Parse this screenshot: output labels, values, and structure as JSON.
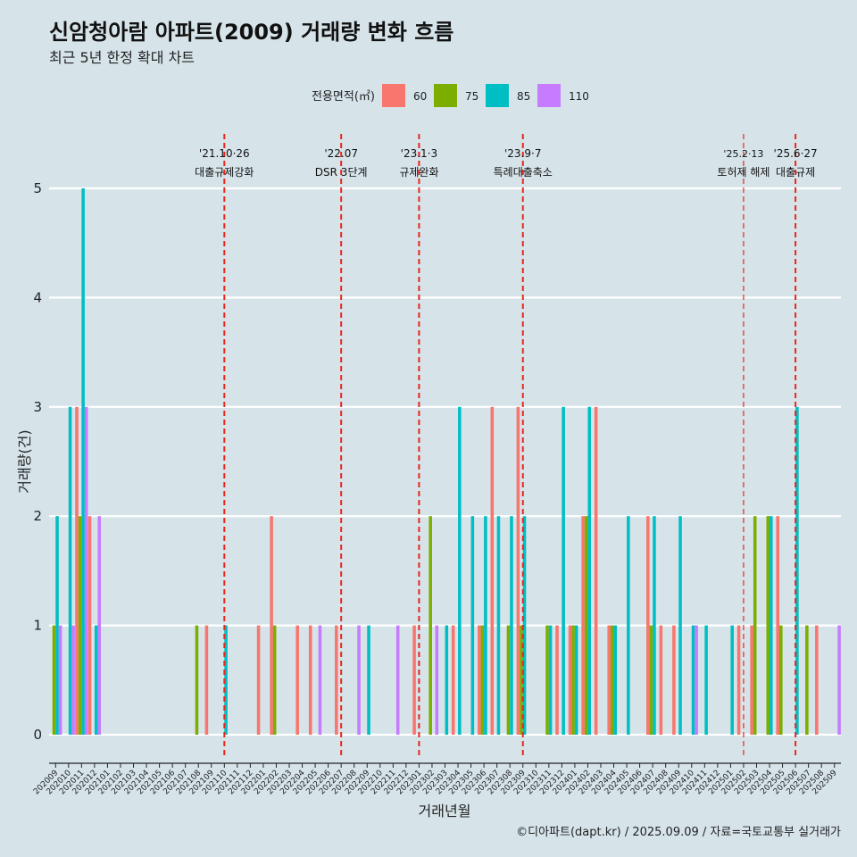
{
  "chart_data": {
    "type": "bar",
    "title": "신암청아람 아파트(2009) 거래량 변화 흐름",
    "subtitle": "최근 5년 한정 확대 차트",
    "xlabel": "거래년월",
    "ylabel": "거래량(건)",
    "ylim": [
      0,
      5
    ],
    "yticks": [
      0,
      1,
      2,
      3,
      4,
      5
    ],
    "legend_title": "전용면적(㎡)",
    "legend_position": "top",
    "caption": "©디아파트(dapt.kr) / 2025.09.09 / 자료=국토교통부 실거래가",
    "categories": [
      "202009",
      "202010",
      "202011",
      "202012",
      "202101",
      "202102",
      "202103",
      "202104",
      "202105",
      "202106",
      "202107",
      "202108",
      "202109",
      "202110",
      "202111",
      "202112",
      "202201",
      "202202",
      "202203",
      "202204",
      "202205",
      "202206",
      "202207",
      "202208",
      "202209",
      "202210",
      "202211",
      "202212",
      "202301",
      "202302",
      "202303",
      "202304",
      "202305",
      "202306",
      "202307",
      "202308",
      "202309",
      "202310",
      "202311",
      "202312",
      "202401",
      "202402",
      "202403",
      "202404",
      "202405",
      "202406",
      "202407",
      "202408",
      "202409",
      "202410",
      "202411",
      "202412",
      "202501",
      "202502",
      "202503",
      "202504",
      "202505",
      "202506",
      "202507",
      "202508",
      "202509"
    ],
    "series": [
      {
        "name": "60",
        "color": "#f8766d",
        "values": [
          0,
          0,
          3,
          2,
          0,
          0,
          0,
          0,
          0,
          0,
          0,
          0,
          1,
          0,
          0,
          0,
          1,
          2,
          0,
          1,
          1,
          0,
          1,
          0,
          0,
          0,
          0,
          0,
          1,
          0,
          0,
          1,
          0,
          1,
          3,
          0,
          3,
          0,
          0,
          1,
          1,
          2,
          3,
          1,
          0,
          0,
          2,
          1,
          1,
          0,
          0,
          0,
          0,
          1,
          1,
          0,
          2,
          0,
          0,
          1,
          0
        ]
      },
      {
        "name": "75",
        "color": "#7cae00",
        "values": [
          1,
          0,
          2,
          0,
          0,
          0,
          0,
          0,
          0,
          0,
          0,
          1,
          0,
          0,
          0,
          0,
          0,
          1,
          0,
          0,
          0,
          0,
          0,
          0,
          0,
          0,
          0,
          0,
          0,
          2,
          0,
          0,
          0,
          1,
          0,
          1,
          1,
          0,
          1,
          0,
          1,
          2,
          0,
          1,
          0,
          0,
          1,
          0,
          0,
          0,
          0,
          0,
          0,
          0,
          2,
          2,
          1,
          0,
          1,
          0,
          0
        ]
      },
      {
        "name": "85",
        "color": "#00bfc4",
        "values": [
          2,
          3,
          5,
          1,
          0,
          0,
          0,
          0,
          0,
          0,
          0,
          0,
          0,
          1,
          0,
          0,
          0,
          0,
          0,
          0,
          0,
          0,
          0,
          0,
          1,
          0,
          0,
          0,
          0,
          0,
          1,
          3,
          2,
          2,
          2,
          2,
          2,
          0,
          1,
          3,
          1,
          3,
          0,
          1,
          2,
          0,
          2,
          0,
          2,
          1,
          1,
          0,
          1,
          0,
          0,
          2,
          0,
          3,
          0,
          0,
          0
        ]
      },
      {
        "name": "110",
        "color": "#c77cff",
        "values": [
          1,
          1,
          3,
          2,
          0,
          0,
          0,
          0,
          0,
          0,
          0,
          0,
          0,
          0,
          0,
          0,
          0,
          0,
          0,
          0,
          1,
          0,
          0,
          1,
          0,
          0,
          1,
          0,
          0,
          1,
          0,
          0,
          0,
          0,
          0,
          0,
          0,
          0,
          0,
          0,
          0,
          0,
          0,
          0,
          0,
          0,
          0,
          0,
          0,
          1,
          0,
          0,
          0,
          0,
          0,
          0,
          0,
          0,
          0,
          0,
          1
        ]
      }
    ],
    "annotations": [
      {
        "x": "202110",
        "date": "'21.10·26",
        "label": "대출규제강화"
      },
      {
        "x": "202207",
        "date": "'22.07",
        "label": "DSR 3단계"
      },
      {
        "x": "202301",
        "date": "'23.1·3",
        "label": "규제완화"
      },
      {
        "x": "202309",
        "date": "'23.9·7",
        "label": "특례대출축소"
      },
      {
        "x": "202502",
        "date": "'25.2·13",
        "label": "토허제 해제"
      },
      {
        "x": "202506",
        "date": "'25.6·27",
        "label": "대출규제"
      }
    ]
  }
}
